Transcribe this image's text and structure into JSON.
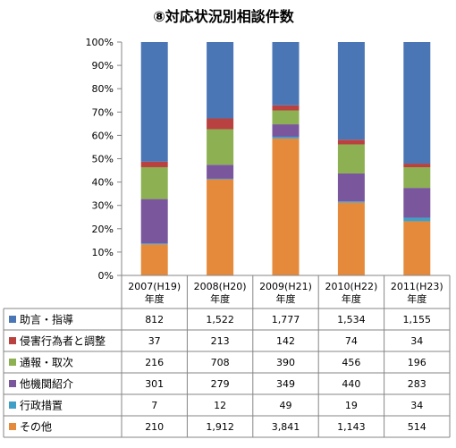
{
  "chart_data": {
    "type": "bar",
    "stacked": "percent",
    "title": "⑧対応状況別相談件数",
    "categories": [
      "2007(H19)\n年度",
      "2008(H20)\n年度",
      "2009(H21)\n年度",
      "2010(H22)\n年度",
      "2011(H23)\n年度"
    ],
    "y_ticks": [
      "0%",
      "10%",
      "20%",
      "30%",
      "40%",
      "50%",
      "60%",
      "70%",
      "80%",
      "90%",
      "100%"
    ],
    "ylim": [
      0,
      100
    ],
    "grid": false,
    "legend": "data-table",
    "series": [
      {
        "name": "その他",
        "color": "#e58a3b",
        "values": [
          210,
          1912,
          3841,
          1143,
          514
        ],
        "labels": [
          "210",
          "1,912",
          "3,841",
          "1,143",
          "514"
        ]
      },
      {
        "name": "行政措置",
        "color": "#3f9fc6",
        "values": [
          7,
          12,
          49,
          19,
          34
        ],
        "labels": [
          "7",
          "12",
          "49",
          "19",
          "34"
        ]
      },
      {
        "name": "他機関紹介",
        "color": "#7a579c",
        "values": [
          301,
          279,
          349,
          440,
          283
        ],
        "labels": [
          "301",
          "279",
          "349",
          "440",
          "283"
        ]
      },
      {
        "name": "通報・取次",
        "color": "#8cb052",
        "values": [
          216,
          708,
          390,
          456,
          196
        ],
        "labels": [
          "216",
          "708",
          "390",
          "456",
          "196"
        ]
      },
      {
        "name": "侵害行為者と調整",
        "color": "#b94240",
        "values": [
          37,
          213,
          142,
          74,
          34
        ],
        "labels": [
          "37",
          "213",
          "142",
          "74",
          "34"
        ]
      },
      {
        "name": "助言・指導",
        "color": "#4a76b5",
        "values": [
          812,
          1522,
          1777,
          1534,
          1155
        ],
        "labels": [
          "812",
          "1,522",
          "1,777",
          "1,534",
          "1,155"
        ]
      }
    ],
    "table_order": [
      "助言・指導",
      "侵害行為者と調整",
      "通報・取次",
      "他機関紹介",
      "行政措置",
      "その他"
    ]
  }
}
